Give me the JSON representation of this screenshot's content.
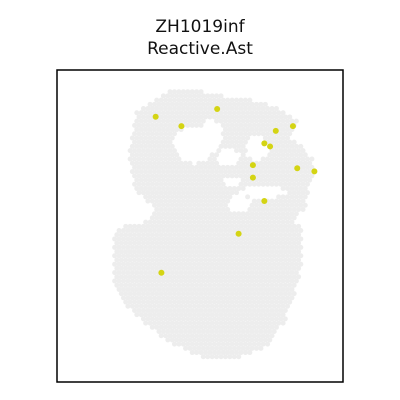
{
  "chart_data": {
    "type": "scatter",
    "title": "ZH1019inf",
    "subtitle": "Reactive.Ast",
    "xlabel": "",
    "ylabel": "",
    "grid": false,
    "legend": "none",
    "axes_visible": false,
    "xlim": [
      0,
      100
    ],
    "ylim": [
      0,
      100
    ],
    "background_spot_color": "#ededed",
    "highlight_color": "#d4d413",
    "tissue_outline": [
      [
        20,
        48
      ],
      [
        20,
        30
      ],
      [
        24,
        25
      ],
      [
        30,
        19
      ],
      [
        39,
        13
      ],
      [
        50,
        8
      ],
      [
        61,
        7
      ],
      [
        73,
        11
      ],
      [
        80,
        20
      ],
      [
        84,
        31
      ],
      [
        86,
        40
      ],
      [
        86,
        50
      ],
      [
        82,
        52
      ],
      [
        87,
        55
      ],
      [
        88,
        62
      ],
      [
        90,
        68
      ],
      [
        89,
        72
      ],
      [
        85,
        76
      ],
      [
        82,
        78
      ],
      [
        84,
        84
      ],
      [
        77,
        88
      ],
      [
        70,
        90
      ],
      [
        64,
        91
      ],
      [
        55,
        92
      ],
      [
        47,
        94
      ],
      [
        39,
        93
      ],
      [
        33,
        90
      ],
      [
        28,
        87
      ],
      [
        25,
        72
      ],
      [
        27,
        62
      ],
      [
        31,
        58
      ],
      [
        35,
        55
      ],
      [
        30,
        51
      ],
      [
        24,
        50
      ]
    ],
    "holes": [
      {
        "x": 48,
        "y": 76,
        "rx": 7,
        "ry": 6
      },
      {
        "x": 54,
        "y": 79,
        "rx": 4,
        "ry": 5
      },
      {
        "x": 60,
        "y": 72,
        "rx": 4,
        "ry": 3
      },
      {
        "x": 70,
        "y": 75,
        "rx": 4,
        "ry": 4
      },
      {
        "x": 72,
        "y": 61,
        "rx": 8,
        "ry": 2
      },
      {
        "x": 61,
        "y": 64,
        "rx": 3,
        "ry": 2
      },
      {
        "x": 64,
        "y": 57,
        "rx": 4,
        "ry": 3
      }
    ],
    "highlighted_points": [
      {
        "x": 34.5,
        "y": 85.0
      },
      {
        "x": 43.5,
        "y": 82.0
      },
      {
        "x": 56.0,
        "y": 87.5
      },
      {
        "x": 82.5,
        "y": 82.0
      },
      {
        "x": 76.5,
        "y": 80.5
      },
      {
        "x": 72.5,
        "y": 76.5
      },
      {
        "x": 74.5,
        "y": 75.5
      },
      {
        "x": 68.5,
        "y": 69.5
      },
      {
        "x": 84.0,
        "y": 68.5
      },
      {
        "x": 90.0,
        "y": 67.5
      },
      {
        "x": 68.5,
        "y": 65.5
      },
      {
        "x": 72.5,
        "y": 58.0
      },
      {
        "x": 63.5,
        "y": 47.5
      },
      {
        "x": 36.5,
        "y": 35.0
      }
    ]
  }
}
